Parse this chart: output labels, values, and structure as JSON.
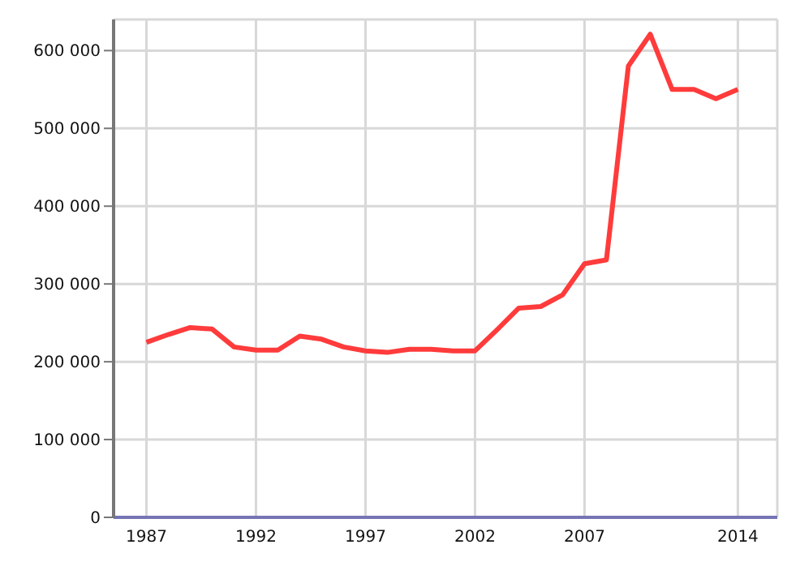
{
  "chart_data": {
    "type": "line",
    "x": [
      1987,
      1988,
      1989,
      1990,
      1991,
      1992,
      1993,
      1994,
      1995,
      1996,
      1997,
      1998,
      1999,
      2000,
      2001,
      2002,
      2003,
      2004,
      2005,
      2006,
      2007,
      2008,
      2009,
      2010,
      2011,
      2012,
      2013,
      2014
    ],
    "series": [
      {
        "color": "#ff3b3b",
        "values": [
          225000,
          235000,
          244000,
          242000,
          219000,
          215000,
          215000,
          233000,
          229000,
          219000,
          214000,
          212000,
          216000,
          216000,
          214000,
          214000,
          241000,
          269000,
          271000,
          286000,
          326000,
          331000,
          580000,
          621000,
          550000,
          550000,
          538000,
          550000
        ]
      }
    ],
    "xlim": [
      1985.5,
      2015.8
    ],
    "xticks": [
      1987,
      1992,
      1997,
      2002,
      2007,
      2014
    ],
    "ylim": [
      0,
      640000
    ],
    "yticks": [
      {
        "value": 0,
        "label": "0"
      },
      {
        "value": 100000,
        "label": "100 000"
      },
      {
        "value": 200000,
        "label": "200 000"
      },
      {
        "value": 300000,
        "label": "300 000"
      },
      {
        "value": 400000,
        "label": "400 000"
      },
      {
        "value": 500000,
        "label": "500 000"
      },
      {
        "value": 600000,
        "label": "600 000"
      }
    ],
    "grid": true,
    "marker": "none",
    "line_style": "solid"
  }
}
